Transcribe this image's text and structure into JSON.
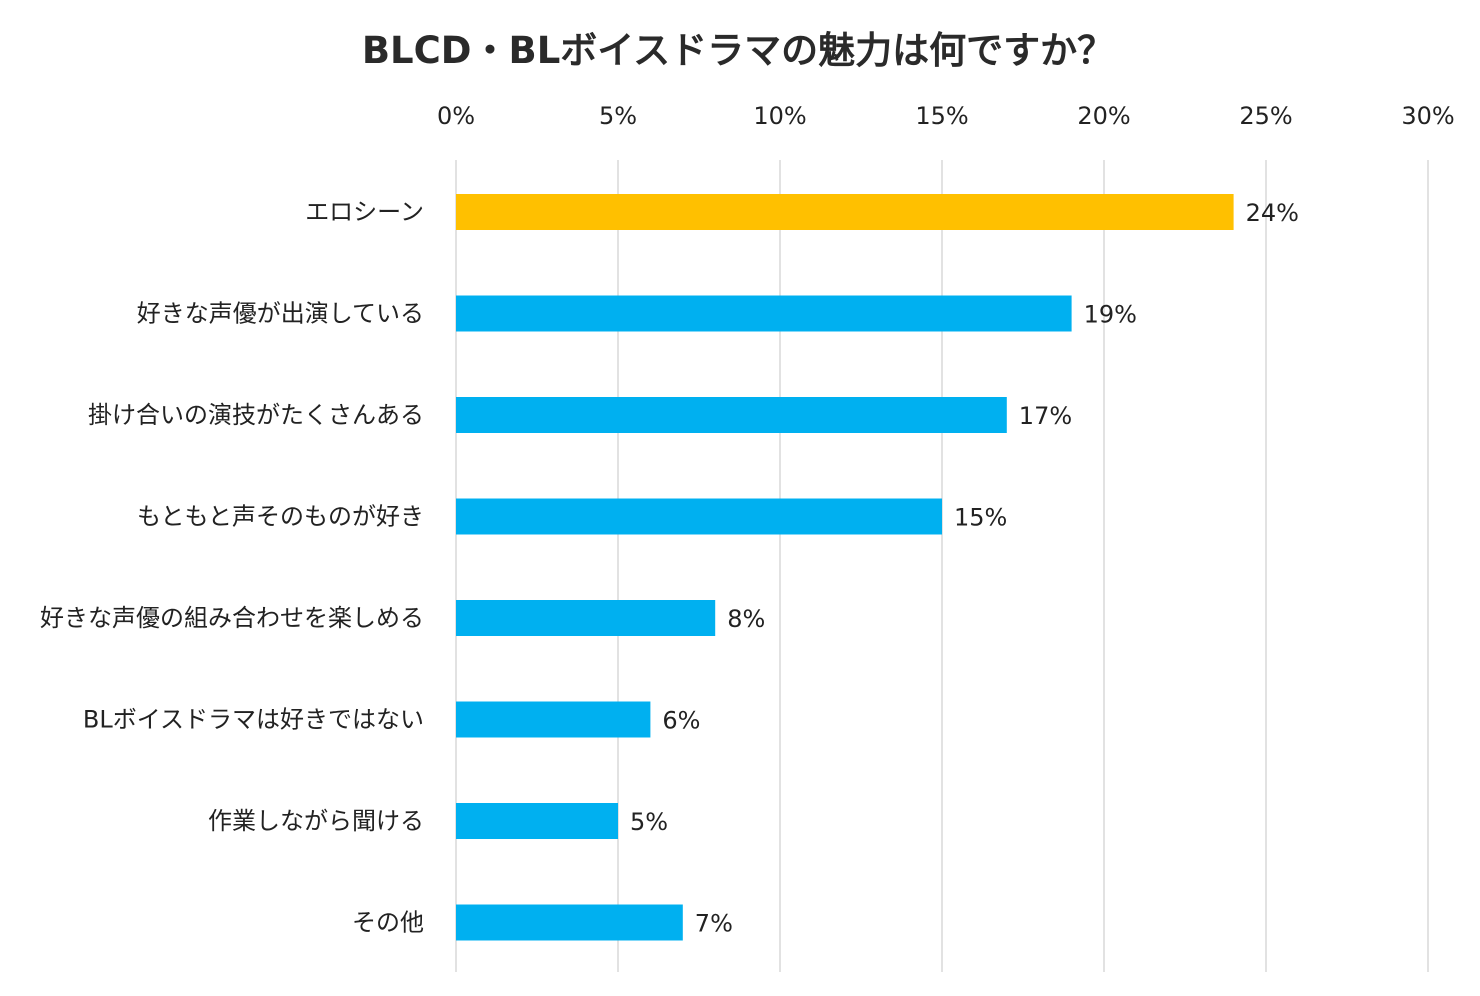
{
  "chart_data": {
    "type": "bar",
    "orientation": "horizontal",
    "title": "BLCD・BLボイスドラマの魅力は何ですか？",
    "xlabel": "",
    "ylabel": "",
    "xlim": [
      0,
      30
    ],
    "x_ticks": [
      0,
      5,
      10,
      15,
      20,
      25,
      30
    ],
    "x_tick_labels": [
      "0%",
      "5%",
      "10%",
      "15%",
      "20%",
      "25%",
      "30%"
    ],
    "axis_position": "top",
    "grid": true,
    "legend": "none",
    "categories": [
      "エロシーン",
      "好きな声優が出演している",
      "掛け合いの演技がたくさんある",
      "もともと声そのものが好き",
      "好きな声優の組み合わせを楽しめる",
      "BLボイスドラマは好きではない",
      "作業しながら聞ける",
      "その他"
    ],
    "values": [
      24,
      19,
      17,
      15,
      8,
      6,
      5,
      7
    ],
    "value_labels": [
      "24%",
      "19%",
      "17%",
      "15%",
      "8%",
      "6%",
      "5%",
      "7%"
    ],
    "bar_colors": [
      "#FFC000",
      "#00B0F0",
      "#00B0F0",
      "#00B0F0",
      "#00B0F0",
      "#00B0F0",
      "#00B0F0",
      "#00B0F0"
    ],
    "grid_color": "#D9D9D9"
  }
}
